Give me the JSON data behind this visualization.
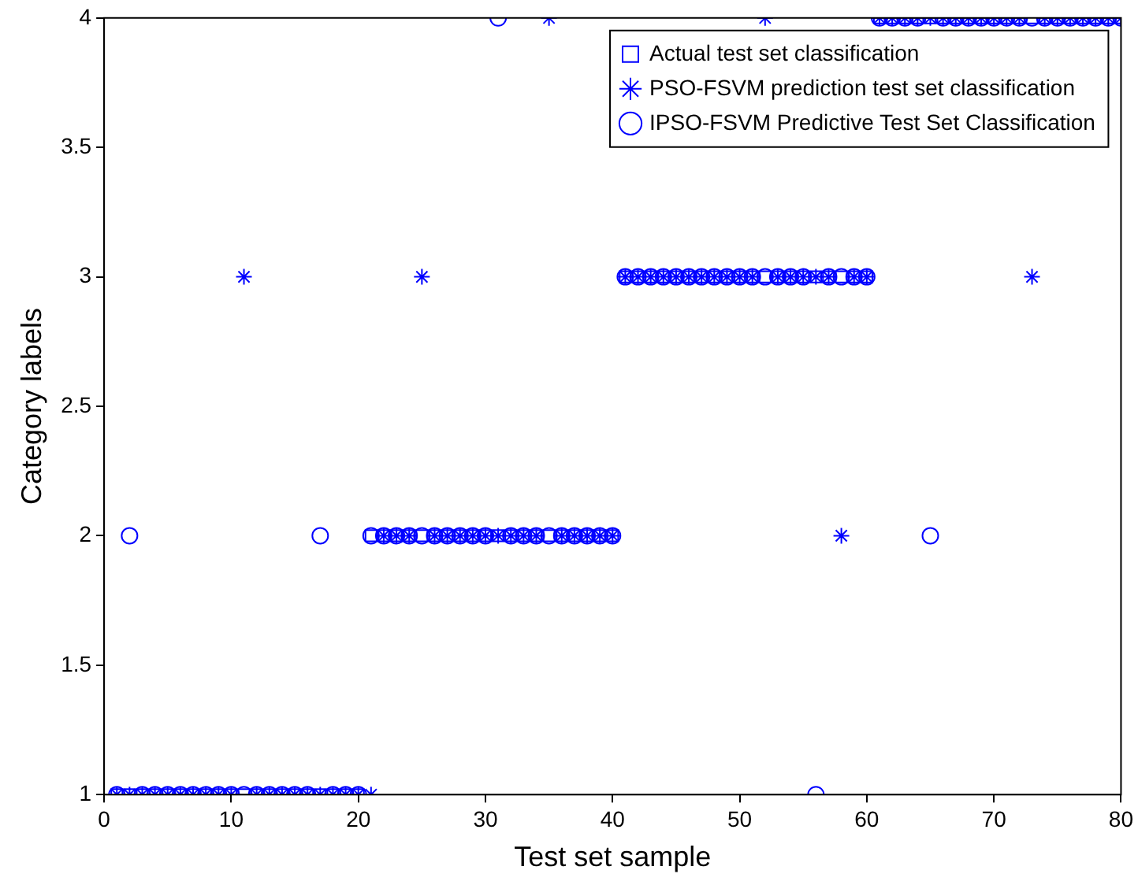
{
  "chart_data": {
    "type": "scatter",
    "xlabel": "Test set sample",
    "ylabel": "Category labels",
    "x": [
      1,
      2,
      3,
      4,
      5,
      6,
      7,
      8,
      9,
      10,
      11,
      12,
      13,
      14,
      15,
      16,
      17,
      18,
      19,
      20,
      21,
      22,
      23,
      24,
      25,
      26,
      27,
      28,
      29,
      30,
      31,
      32,
      33,
      34,
      35,
      36,
      37,
      38,
      39,
      40,
      41,
      42,
      43,
      44,
      45,
      46,
      47,
      48,
      49,
      50,
      51,
      52,
      53,
      54,
      55,
      56,
      57,
      58,
      59,
      60,
      61,
      62,
      63,
      64,
      65,
      66,
      67,
      68,
      69,
      70,
      71,
      72,
      73,
      74,
      75,
      76,
      77,
      78,
      79,
      80
    ],
    "series": [
      {
        "name": "Actual test set classification",
        "color": "#0000ff",
        "marker": "square",
        "values": [
          1,
          1,
          1,
          1,
          1,
          1,
          1,
          1,
          1,
          1,
          1,
          1,
          1,
          1,
          1,
          1,
          1,
          1,
          1,
          1,
          2,
          2,
          2,
          2,
          2,
          2,
          2,
          2,
          2,
          2,
          2,
          2,
          2,
          2,
          2,
          2,
          2,
          2,
          2,
          2,
          3,
          3,
          3,
          3,
          3,
          3,
          3,
          3,
          3,
          3,
          3,
          3,
          3,
          3,
          3,
          3,
          3,
          3,
          3,
          3,
          4,
          4,
          4,
          4,
          4,
          4,
          4,
          4,
          4,
          4,
          4,
          4,
          4,
          4,
          4,
          4,
          4,
          4,
          4,
          4
        ]
      },
      {
        "name": "PSO-FSVM prediction test set classification",
        "color": "#0000ff",
        "marker": "cross",
        "values": [
          1,
          1,
          1,
          1,
          1,
          1,
          1,
          1,
          1,
          1,
          3,
          1,
          1,
          1,
          1,
          1,
          1,
          1,
          1,
          1,
          1,
          2,
          2,
          2,
          3,
          2,
          2,
          2,
          2,
          2,
          2,
          2,
          2,
          2,
          4,
          2,
          2,
          2,
          2,
          2,
          3,
          3,
          3,
          3,
          3,
          3,
          3,
          3,
          3,
          3,
          3,
          4,
          3,
          3,
          3,
          3,
          3,
          2,
          3,
          3,
          4,
          4,
          4,
          4,
          4,
          4,
          4,
          4,
          4,
          4,
          4,
          4,
          3,
          4,
          4,
          4,
          4,
          4,
          4,
          4
        ]
      },
      {
        "name": "IPSO-FSVM Predictive Test Set Classification",
        "color": "#0000ff",
        "marker": "circle",
        "values": [
          1,
          2,
          1,
          1,
          1,
          1,
          1,
          1,
          1,
          1,
          1,
          1,
          1,
          1,
          1,
          1,
          2,
          1,
          1,
          1,
          2,
          2,
          2,
          2,
          2,
          2,
          2,
          2,
          2,
          2,
          4,
          2,
          2,
          2,
          2,
          2,
          2,
          2,
          2,
          2,
          3,
          3,
          3,
          3,
          3,
          3,
          3,
          3,
          3,
          3,
          3,
          3,
          3,
          3,
          3,
          1,
          3,
          3,
          3,
          3,
          4,
          4,
          4,
          4,
          2,
          4,
          4,
          4,
          4,
          4,
          4,
          4,
          4,
          4,
          4,
          4,
          4,
          4,
          4,
          4
        ]
      }
    ],
    "xlim": [
      0,
      80
    ],
    "xticks": [
      0,
      10,
      20,
      30,
      40,
      50,
      60,
      70,
      80
    ],
    "ylim": [
      1,
      4
    ],
    "yticks": [
      1,
      1.5,
      2,
      2.5,
      3,
      3.5,
      4
    ],
    "grid": false,
    "legend": "top right"
  }
}
